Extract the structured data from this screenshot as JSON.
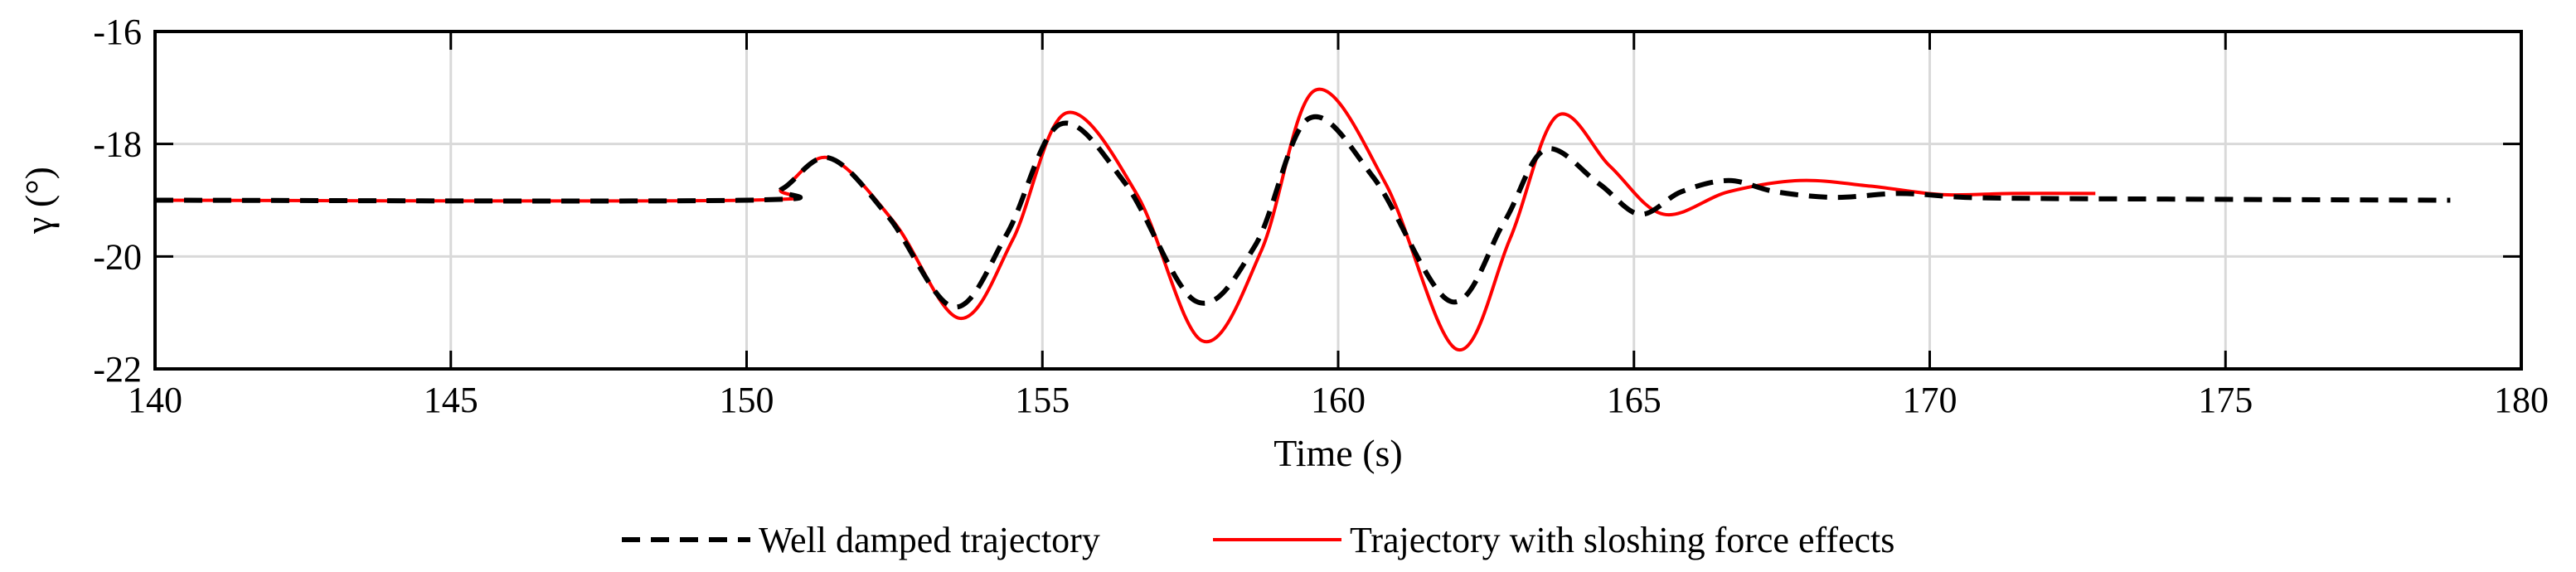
{
  "chart_data": {
    "type": "line",
    "title": "",
    "xlabel": "Time (s)",
    "ylabel": "γ (°)",
    "xlim": [
      140,
      180
    ],
    "ylim": [
      -22,
      -16
    ],
    "xticks": [
      140,
      145,
      150,
      155,
      160,
      165,
      170,
      175,
      180
    ],
    "yticks": [
      -22,
      -20,
      -18,
      -16
    ],
    "xtick_labels": [
      "140",
      "145",
      "150",
      "155",
      "160",
      "165",
      "170",
      "175",
      "180"
    ],
    "ytick_labels": [
      "-22",
      "-20",
      "-18",
      "-16"
    ],
    "grid": true,
    "legend_position": "bottom",
    "series": [
      {
        "name": "Well damped trajectory",
        "color": "#000000",
        "style": "dashed",
        "x": [
          140,
          150,
          150.6,
          151.4,
          152.4,
          153.5,
          154.4,
          155.3,
          156.4,
          157.6,
          158.6,
          159.5,
          160.6,
          161.9,
          162.8,
          163.5,
          164.4,
          165.1,
          165.8,
          166.6,
          167.4,
          168.4,
          169.5,
          170.6,
          172,
          174,
          176,
          178.8
        ],
        "values": [
          -19.0,
          -19.0,
          -18.8,
          -18.25,
          -19.3,
          -20.9,
          -19.6,
          -17.65,
          -18.7,
          -20.8,
          -19.8,
          -17.55,
          -18.6,
          -20.8,
          -19.4,
          -18.1,
          -18.7,
          -19.25,
          -18.85,
          -18.65,
          -18.85,
          -18.95,
          -18.88,
          -18.95,
          -18.97,
          -18.98,
          -18.99,
          -19.0
        ]
      },
      {
        "name": "Trajectory with sloshing force effects",
        "color": "#ff0000",
        "style": "solid",
        "x": [
          140,
          150,
          150.6,
          151.4,
          152.5,
          153.6,
          154.5,
          155.4,
          156.6,
          157.7,
          158.7,
          159.6,
          160.8,
          162.0,
          162.9,
          163.7,
          164.6,
          165.5,
          166.6,
          167.8,
          169.0,
          170.2,
          171.4,
          172.8
        ],
        "values": [
          -19.0,
          -19.0,
          -18.8,
          -18.25,
          -19.4,
          -21.1,
          -19.7,
          -17.45,
          -18.9,
          -21.5,
          -19.9,
          -17.05,
          -18.7,
          -21.65,
          -19.7,
          -17.5,
          -18.4,
          -19.25,
          -18.85,
          -18.65,
          -18.75,
          -18.9,
          -18.88,
          -18.88
        ]
      }
    ]
  }
}
